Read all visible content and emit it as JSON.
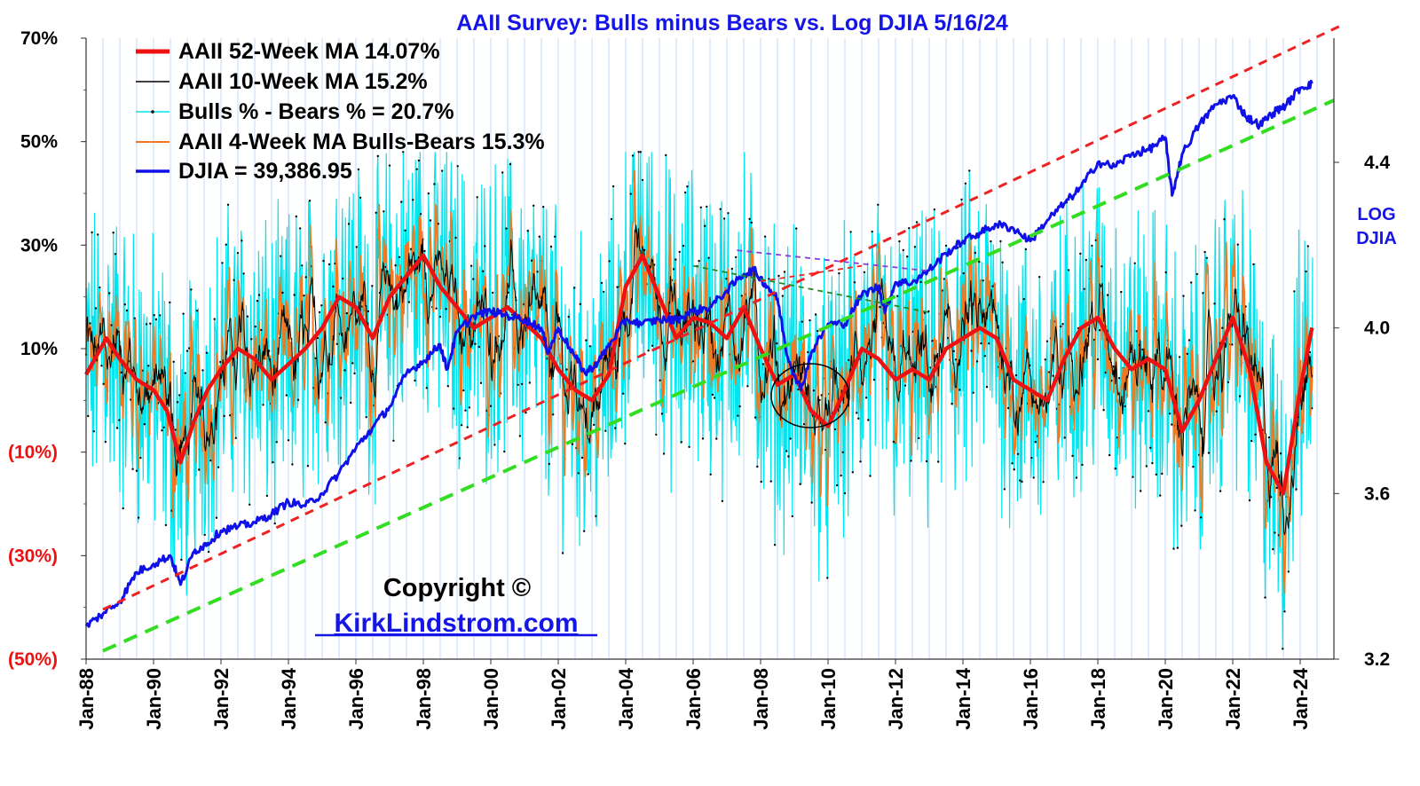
{
  "colors": {
    "background": "#ffffff",
    "title": "#1515e6",
    "djia": "#1010e8",
    "ma52": "#ee1111",
    "ma10": "#000000",
    "bullsBears": "#00e5ee",
    "ma4": "#f07820",
    "gridline": "#b4d2f5",
    "negativeTick": "#ee1111",
    "upperTrend": "#ee2222",
    "lowerTrend": "#33dd22",
    "purpleTrend": "#8a3ad8",
    "greenTrend": "#228822",
    "circle": "#000000",
    "site": "#1515e6"
  },
  "chart_data": {
    "type": "line",
    "title": "AAII Survey: Bulls minus Bears vs. Log DJIA  5/16/24",
    "left_axis": {
      "ylim": [
        -50,
        70
      ],
      "ticks": [
        70,
        50,
        30,
        10,
        -10,
        -30,
        -50
      ],
      "tick_labels": [
        "70%",
        "50%",
        "30%",
        "10%",
        "(10%)",
        "(30%)",
        "(50%)"
      ]
    },
    "right_axis": {
      "label": [
        "LOG",
        "DJIA"
      ],
      "ylim": [
        3.2,
        4.7
      ],
      "ticks": [
        4.4,
        4.0,
        3.6,
        3.2
      ],
      "tick_labels": [
        "4.4",
        "4.0",
        "3.6",
        "3.2"
      ]
    },
    "x_axis": {
      "xlim": [
        1988.0,
        2025.0
      ],
      "ticks": [
        1988,
        1990,
        1992,
        1994,
        1996,
        1998,
        2000,
        2002,
        2004,
        2006,
        2008,
        2010,
        2012,
        2014,
        2016,
        2018,
        2020,
        2022,
        2024
      ],
      "tick_labels": [
        "Jan-88",
        "Jan-90",
        "Jan-92",
        "Jan-94",
        "Jan-96",
        "Jan-98",
        "Jan-00",
        "Jan-02",
        "Jan-04",
        "Jan-06",
        "Jan-08",
        "Jan-10",
        "Jan-12",
        "Jan-14",
        "Jan-16",
        "Jan-18",
        "Jan-20",
        "Jan-22",
        "Jan-24"
      ],
      "grid": true
    },
    "legend": {
      "placement": "top-left",
      "entries": [
        "AAII 52-Week MA 14.07%",
        "AAII 10-Week MA 15.2%",
        "Bulls % - Bears % = 20.7%",
        "AAII 4-Week MA Bulls-Bears 15.3%",
        "DJIA =  39,386.95"
      ]
    },
    "series": [
      {
        "name": "AAII 52-Week MA",
        "axis": "left",
        "x": [
          1988.0,
          1988.6,
          1989.0,
          1989.5,
          1990.0,
          1990.4,
          1990.8,
          1991.2,
          1991.6,
          1992.0,
          1992.5,
          1993.0,
          1993.5,
          1994.0,
          1994.5,
          1995.0,
          1995.5,
          1996.0,
          1996.5,
          1997.0,
          1997.5,
          1998.0,
          1998.5,
          1999.0,
          1999.5,
          2000.0,
          2000.5,
          2001.0,
          2001.5,
          2002.0,
          2002.5,
          2003.0,
          2003.5,
          2004.0,
          2004.5,
          2005.0,
          2005.5,
          2006.0,
          2006.5,
          2007.0,
          2007.5,
          2008.0,
          2008.5,
          2009.0,
          2009.5,
          2010.0,
          2010.5,
          2011.0,
          2011.5,
          2012.0,
          2012.5,
          2013.0,
          2013.5,
          2014.0,
          2014.5,
          2015.0,
          2015.5,
          2016.0,
          2016.5,
          2017.0,
          2017.5,
          2018.0,
          2018.5,
          2019.0,
          2019.5,
          2020.0,
          2020.5,
          2021.0,
          2021.5,
          2022.0,
          2022.5,
          2023.0,
          2023.5,
          2024.0,
          2024.35
        ],
        "values": [
          5,
          12,
          8,
          4,
          2,
          -2,
          -12,
          -4,
          2,
          6,
          10,
          8,
          4,
          7,
          10,
          14,
          20,
          18,
          12,
          20,
          24,
          28,
          22,
          18,
          14,
          16,
          18,
          15,
          12,
          6,
          2,
          0,
          5,
          22,
          28,
          20,
          12,
          16,
          15,
          12,
          18,
          10,
          3,
          5,
          -2,
          -5,
          2,
          10,
          8,
          4,
          6,
          4,
          10,
          12,
          14,
          12,
          4,
          2,
          0,
          8,
          14,
          16,
          10,
          6,
          8,
          6,
          -6,
          0,
          8,
          16,
          6,
          -12,
          -18,
          2,
          14.07
        ],
        "color": "#ee1111"
      },
      {
        "name": "DJIA",
        "axis": "right",
        "x": [
          1988.0,
          1988.5,
          1989.0,
          1989.5,
          1990.0,
          1990.5,
          1990.8,
          1991.2,
          1991.6,
          1992.0,
          1992.5,
          1993.0,
          1993.5,
          1994.0,
          1994.5,
          1995.0,
          1995.5,
          1996.0,
          1996.5,
          1997.0,
          1997.5,
          1998.0,
          1998.5,
          1998.7,
          1999.0,
          1999.5,
          2000.0,
          2000.5,
          2001.0,
          2001.5,
          2001.7,
          2002.0,
          2002.5,
          2002.8,
          2003.2,
          2003.6,
          2004.0,
          2004.5,
          2005.0,
          2005.5,
          2006.0,
          2006.5,
          2007.0,
          2007.5,
          2007.8,
          2008.2,
          2008.5,
          2008.8,
          2009.2,
          2009.5,
          2010.0,
          2010.5,
          2011.0,
          2011.5,
          2011.7,
          2012.0,
          2012.5,
          2013.0,
          2013.5,
          2014.0,
          2014.5,
          2015.0,
          2015.5,
          2016.0,
          2016.5,
          2017.0,
          2017.5,
          2018.0,
          2018.5,
          2019.0,
          2019.5,
          2020.0,
          2020.2,
          2020.5,
          2021.0,
          2021.5,
          2022.0,
          2022.4,
          2022.8,
          2023.2,
          2023.6,
          2024.0,
          2024.35
        ],
        "values": [
          3.28,
          3.31,
          3.34,
          3.41,
          3.43,
          3.45,
          3.38,
          3.46,
          3.48,
          3.51,
          3.52,
          3.53,
          3.55,
          3.58,
          3.57,
          3.6,
          3.65,
          3.71,
          3.76,
          3.81,
          3.89,
          3.92,
          3.96,
          3.9,
          3.99,
          4.03,
          4.04,
          4.03,
          4.02,
          4.0,
          3.94,
          4.0,
          3.93,
          3.89,
          3.92,
          3.97,
          4.02,
          4.01,
          4.02,
          4.02,
          4.04,
          4.05,
          4.09,
          4.13,
          4.14,
          4.1,
          4.07,
          3.93,
          3.85,
          3.94,
          4.01,
          4.01,
          4.08,
          4.1,
          4.04,
          4.11,
          4.11,
          4.14,
          4.18,
          4.21,
          4.23,
          4.25,
          4.24,
          4.21,
          4.26,
          4.3,
          4.34,
          4.4,
          4.39,
          4.42,
          4.43,
          4.46,
          4.32,
          4.42,
          4.49,
          4.54,
          4.56,
          4.51,
          4.49,
          4.52,
          4.54,
          4.58,
          4.59
        ],
        "color": "#1010e8"
      }
    ],
    "trendlines": [
      {
        "name": "upper-trend",
        "axis": "right",
        "from": [
          1988.5,
          3.32
        ],
        "to": [
          2025.2,
          4.73
        ],
        "color": "#ee2222"
      },
      {
        "name": "lower-trend",
        "axis": "right",
        "from": [
          1988.5,
          3.22
        ],
        "to": [
          2025.0,
          4.55
        ],
        "color": "#33dd22"
      },
      {
        "name": "purple-trend",
        "axis": "left",
        "from": [
          2007.3,
          29
        ],
        "to": [
          2013.0,
          25
        ],
        "color": "#8a3ad8"
      },
      {
        "name": "green-trend",
        "axis": "left",
        "from": [
          2006.0,
          26
        ],
        "to": [
          2013.0,
          17
        ],
        "color": "#228822"
      },
      {
        "name": "red-trend",
        "axis": "left",
        "from": [
          2008.0,
          23
        ],
        "to": [
          2011.0,
          26
        ],
        "color": "#ee2222"
      }
    ],
    "annotations": {
      "copyright": "Copyright ©",
      "site": "KirkLindstrom.com"
    }
  }
}
